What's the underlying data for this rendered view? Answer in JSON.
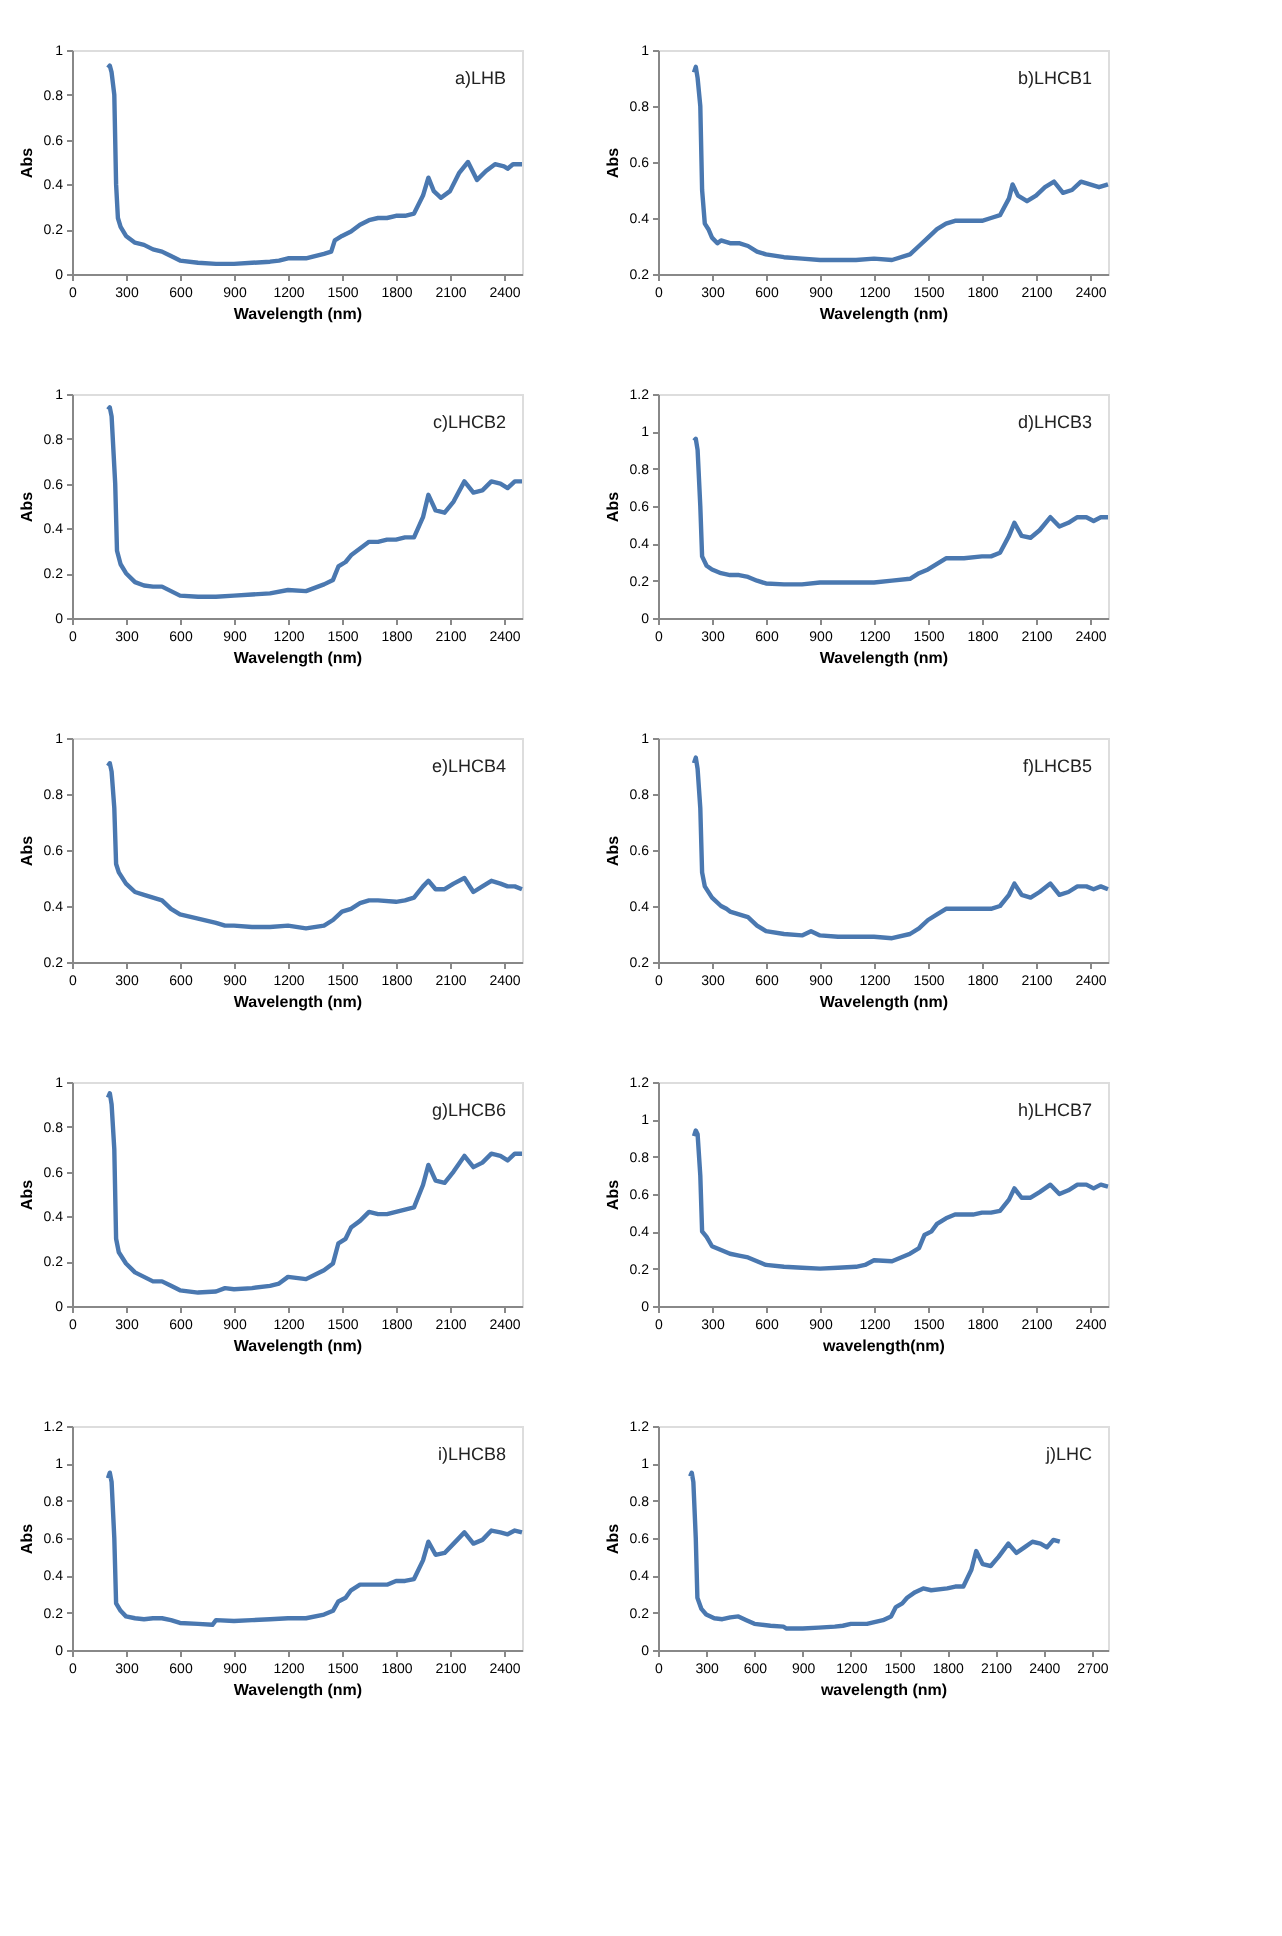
{
  "chart_data": [
    {
      "type": "line",
      "title": "a)LHB",
      "xlabel": "Wavelength (nm)",
      "ylabel": "Abs",
      "xlim": [
        0,
        2500
      ],
      "xticks": [
        0,
        300,
        600,
        900,
        1200,
        1500,
        1800,
        2100,
        2400
      ],
      "ylim": [
        0,
        1
      ],
      "yticks": [
        0,
        0.2,
        0.4,
        0.6,
        0.8,
        1
      ],
      "grid": false,
      "x": [
        200,
        210,
        220,
        235,
        245,
        255,
        270,
        300,
        350,
        400,
        450,
        500,
        550,
        600,
        700,
        800,
        900,
        1000,
        1100,
        1150,
        1200,
        1300,
        1400,
        1440,
        1460,
        1500,
        1550,
        1600,
        1650,
        1700,
        1750,
        1800,
        1850,
        1900,
        1950,
        1980,
        2010,
        2050,
        2100,
        2150,
        2200,
        2250,
        2300,
        2350,
        2400,
        2420,
        2450,
        2500
      ],
      "series": [
        {
          "color": "#4a78b0",
          "values": [
            0.92,
            0.93,
            0.9,
            0.8,
            0.4,
            0.25,
            0.21,
            0.17,
            0.14,
            0.13,
            0.11,
            0.1,
            0.08,
            0.06,
            0.05,
            0.045,
            0.045,
            0.05,
            0.055,
            0.06,
            0.07,
            0.07,
            0.09,
            0.1,
            0.15,
            0.17,
            0.19,
            0.22,
            0.24,
            0.25,
            0.25,
            0.26,
            0.26,
            0.27,
            0.35,
            0.43,
            0.37,
            0.34,
            0.37,
            0.45,
            0.5,
            0.42,
            0.46,
            0.49,
            0.48,
            0.47,
            0.49,
            0.49
          ]
        }
      ]
    },
    {
      "type": "line",
      "title": "b)LHCB1",
      "xlabel": "Wavelength (nm)",
      "ylabel": "Abs",
      "xlim": [
        0,
        2500
      ],
      "xticks": [
        0,
        300,
        600,
        900,
        1200,
        1500,
        1800,
        2100,
        2400
      ],
      "ylim": [
        0.2,
        1
      ],
      "yticks": [
        0.2,
        0.4,
        0.6,
        0.8,
        1
      ],
      "grid": false,
      "x": [
        200,
        210,
        220,
        235,
        245,
        260,
        280,
        300,
        330,
        350,
        400,
        450,
        500,
        550,
        600,
        700,
        800,
        900,
        1000,
        1100,
        1200,
        1300,
        1400,
        1450,
        1500,
        1550,
        1600,
        1650,
        1700,
        1800,
        1850,
        1900,
        1950,
        1970,
        2000,
        2050,
        2100,
        2150,
        2200,
        2250,
        2300,
        2350,
        2400,
        2450,
        2500
      ],
      "series": [
        {
          "color": "#4a78b0",
          "values": [
            0.92,
            0.94,
            0.9,
            0.8,
            0.5,
            0.38,
            0.36,
            0.33,
            0.31,
            0.32,
            0.31,
            0.31,
            0.3,
            0.28,
            0.27,
            0.26,
            0.255,
            0.25,
            0.25,
            0.25,
            0.255,
            0.25,
            0.27,
            0.3,
            0.33,
            0.36,
            0.38,
            0.39,
            0.39,
            0.39,
            0.4,
            0.41,
            0.47,
            0.52,
            0.48,
            0.46,
            0.48,
            0.51,
            0.53,
            0.49,
            0.5,
            0.53,
            0.52,
            0.51,
            0.52
          ]
        }
      ]
    },
    {
      "type": "line",
      "title": "c)LHCB2",
      "xlabel": "Wavelength (nm)",
      "ylabel": "Abs",
      "xlim": [
        0,
        2500
      ],
      "xticks": [
        0,
        300,
        600,
        900,
        1200,
        1500,
        1800,
        2100,
        2400
      ],
      "ylim": [
        0,
        1
      ],
      "yticks": [
        0,
        0.2,
        0.4,
        0.6,
        0.8,
        1
      ],
      "grid": false,
      "x": [
        200,
        210,
        220,
        240,
        250,
        270,
        300,
        350,
        400,
        450,
        500,
        550,
        600,
        700,
        800,
        900,
        1000,
        1100,
        1200,
        1300,
        1400,
        1450,
        1480,
        1520,
        1550,
        1600,
        1650,
        1700,
        1750,
        1800,
        1850,
        1900,
        1950,
        1980,
        2020,
        2070,
        2120,
        2180,
        2230,
        2280,
        2330,
        2380,
        2420,
        2460,
        2500
      ],
      "series": [
        {
          "color": "#4a78b0",
          "values": [
            0.93,
            0.94,
            0.9,
            0.6,
            0.3,
            0.24,
            0.2,
            0.16,
            0.145,
            0.14,
            0.14,
            0.12,
            0.1,
            0.095,
            0.095,
            0.1,
            0.105,
            0.11,
            0.125,
            0.12,
            0.15,
            0.17,
            0.23,
            0.25,
            0.28,
            0.31,
            0.34,
            0.34,
            0.35,
            0.35,
            0.36,
            0.36,
            0.45,
            0.55,
            0.48,
            0.47,
            0.52,
            0.61,
            0.56,
            0.57,
            0.61,
            0.6,
            0.58,
            0.61,
            0.61
          ]
        }
      ]
    },
    {
      "type": "line",
      "title": "d)LHCB3",
      "xlabel": "Wavelength (nm)",
      "ylabel": "Abs",
      "xlim": [
        0,
        2500
      ],
      "xticks": [
        0,
        300,
        600,
        900,
        1200,
        1500,
        1800,
        2100,
        2400
      ],
      "ylim": [
        0,
        1.2
      ],
      "yticks": [
        0,
        0.2,
        0.4,
        0.6,
        0.8,
        1,
        1.2
      ],
      "grid": false,
      "x": [
        200,
        210,
        220,
        235,
        245,
        270,
        300,
        350,
        400,
        450,
        500,
        550,
        600,
        700,
        800,
        900,
        1000,
        1100,
        1200,
        1300,
        1400,
        1450,
        1500,
        1550,
        1600,
        1650,
        1700,
        1800,
        1850,
        1900,
        1950,
        1980,
        2020,
        2070,
        2120,
        2180,
        2230,
        2280,
        2330,
        2380,
        2420,
        2460,
        2500
      ],
      "series": [
        {
          "color": "#4a78b0",
          "values": [
            0.95,
            0.96,
            0.9,
            0.6,
            0.33,
            0.28,
            0.26,
            0.24,
            0.23,
            0.23,
            0.22,
            0.2,
            0.185,
            0.18,
            0.18,
            0.19,
            0.19,
            0.19,
            0.19,
            0.2,
            0.21,
            0.24,
            0.26,
            0.29,
            0.32,
            0.32,
            0.32,
            0.33,
            0.33,
            0.35,
            0.44,
            0.51,
            0.44,
            0.43,
            0.47,
            0.54,
            0.49,
            0.51,
            0.54,
            0.54,
            0.52,
            0.54,
            0.54
          ]
        }
      ]
    },
    {
      "type": "line",
      "title": "e)LHCB4",
      "xlabel": "Wavelength (nm)",
      "ylabel": "Abs",
      "xlim": [
        0,
        2500
      ],
      "xticks": [
        0,
        300,
        600,
        900,
        1200,
        1500,
        1800,
        2100,
        2400
      ],
      "ylim": [
        0.2,
        1
      ],
      "yticks": [
        0.2,
        0.4,
        0.6,
        0.8,
        1
      ],
      "grid": false,
      "x": [
        200,
        210,
        220,
        235,
        245,
        260,
        300,
        350,
        400,
        450,
        500,
        550,
        600,
        700,
        800,
        850,
        900,
        1000,
        1100,
        1200,
        1300,
        1400,
        1450,
        1500,
        1550,
        1600,
        1650,
        1700,
        1800,
        1850,
        1900,
        1950,
        1980,
        2020,
        2070,
        2120,
        2180,
        2230,
        2280,
        2330,
        2380,
        2420,
        2460,
        2500
      ],
      "series": [
        {
          "color": "#4a78b0",
          "values": [
            0.9,
            0.91,
            0.88,
            0.75,
            0.55,
            0.52,
            0.48,
            0.45,
            0.44,
            0.43,
            0.42,
            0.39,
            0.37,
            0.355,
            0.34,
            0.33,
            0.33,
            0.325,
            0.325,
            0.33,
            0.32,
            0.33,
            0.35,
            0.38,
            0.39,
            0.41,
            0.42,
            0.42,
            0.415,
            0.42,
            0.43,
            0.47,
            0.49,
            0.46,
            0.46,
            0.48,
            0.5,
            0.45,
            0.47,
            0.49,
            0.48,
            0.47,
            0.47,
            0.46
          ]
        }
      ]
    },
    {
      "type": "line",
      "title": "f)LHCB5",
      "xlabel": "Wavelength (nm)",
      "ylabel": "Abs",
      "xlim": [
        0,
        2500
      ],
      "xticks": [
        0,
        300,
        600,
        900,
        1200,
        1500,
        1800,
        2100,
        2400
      ],
      "ylim": [
        0.2,
        1
      ],
      "yticks": [
        0.2,
        0.4,
        0.6,
        0.8,
        1
      ],
      "grid": false,
      "x": [
        200,
        210,
        220,
        235,
        245,
        260,
        300,
        350,
        380,
        400,
        450,
        500,
        550,
        600,
        700,
        800,
        850,
        900,
        1000,
        1100,
        1200,
        1300,
        1400,
        1450,
        1500,
        1550,
        1600,
        1650,
        1700,
        1800,
        1850,
        1900,
        1950,
        1980,
        2020,
        2070,
        2120,
        2180,
        2230,
        2280,
        2330,
        2380,
        2420,
        2460,
        2500
      ],
      "series": [
        {
          "color": "#4a78b0",
          "values": [
            0.91,
            0.93,
            0.89,
            0.75,
            0.52,
            0.47,
            0.43,
            0.4,
            0.39,
            0.38,
            0.37,
            0.36,
            0.33,
            0.31,
            0.3,
            0.295,
            0.31,
            0.295,
            0.29,
            0.29,
            0.29,
            0.285,
            0.3,
            0.32,
            0.35,
            0.37,
            0.39,
            0.39,
            0.39,
            0.39,
            0.39,
            0.4,
            0.44,
            0.48,
            0.44,
            0.43,
            0.45,
            0.48,
            0.44,
            0.45,
            0.47,
            0.47,
            0.46,
            0.47,
            0.46
          ]
        }
      ]
    },
    {
      "type": "line",
      "title": "g)LHCB6",
      "xlabel": "Wavelength (nm)",
      "ylabel": "Abs",
      "xlim": [
        0,
        2500
      ],
      "xticks": [
        0,
        300,
        600,
        900,
        1200,
        1500,
        1800,
        2100,
        2400
      ],
      "ylim": [
        0,
        1
      ],
      "yticks": [
        0,
        0.2,
        0.4,
        0.6,
        0.8,
        1
      ],
      "grid": false,
      "x": [
        200,
        210,
        220,
        235,
        245,
        260,
        300,
        350,
        400,
        450,
        500,
        550,
        600,
        700,
        800,
        850,
        900,
        1000,
        1100,
        1150,
        1200,
        1300,
        1400,
        1450,
        1480,
        1520,
        1550,
        1600,
        1650,
        1700,
        1750,
        1800,
        1850,
        1900,
        1950,
        1980,
        2020,
        2070,
        2120,
        2180,
        2230,
        2280,
        2330,
        2380,
        2420,
        2460,
        2500
      ],
      "series": [
        {
          "color": "#4a78b0",
          "values": [
            0.93,
            0.95,
            0.9,
            0.7,
            0.3,
            0.24,
            0.19,
            0.15,
            0.13,
            0.11,
            0.11,
            0.09,
            0.07,
            0.06,
            0.065,
            0.08,
            0.075,
            0.08,
            0.09,
            0.1,
            0.13,
            0.12,
            0.16,
            0.19,
            0.28,
            0.3,
            0.35,
            0.38,
            0.42,
            0.41,
            0.41,
            0.42,
            0.43,
            0.44,
            0.54,
            0.63,
            0.56,
            0.55,
            0.6,
            0.67,
            0.62,
            0.64,
            0.68,
            0.67,
            0.65,
            0.68,
            0.68
          ]
        }
      ]
    },
    {
      "type": "line",
      "title": "h)LHCB7",
      "xlabel": "wavelength(nm)",
      "ylabel": "Abs",
      "xlim": [
        0,
        2500
      ],
      "xticks": [
        0,
        300,
        600,
        900,
        1200,
        1500,
        1800,
        2100,
        2400
      ],
      "ylim": [
        0,
        1.2
      ],
      "yticks": [
        0,
        0.2,
        0.4,
        0.6,
        0.8,
        1,
        1.2
      ],
      "grid": false,
      "x": [
        200,
        210,
        220,
        235,
        245,
        270,
        300,
        350,
        400,
        450,
        500,
        550,
        600,
        700,
        800,
        900,
        1000,
        1100,
        1150,
        1200,
        1300,
        1400,
        1450,
        1480,
        1520,
        1550,
        1600,
        1650,
        1700,
        1750,
        1800,
        1850,
        1900,
        1950,
        1980,
        2020,
        2070,
        2120,
        2180,
        2230,
        2280,
        2330,
        2380,
        2420,
        2460,
        2500
      ],
      "series": [
        {
          "color": "#4a78b0",
          "values": [
            0.91,
            0.94,
            0.92,
            0.7,
            0.4,
            0.37,
            0.32,
            0.3,
            0.28,
            0.27,
            0.26,
            0.24,
            0.22,
            0.21,
            0.205,
            0.2,
            0.205,
            0.21,
            0.22,
            0.245,
            0.24,
            0.28,
            0.31,
            0.38,
            0.4,
            0.44,
            0.47,
            0.49,
            0.49,
            0.49,
            0.5,
            0.5,
            0.51,
            0.57,
            0.63,
            0.58,
            0.58,
            0.61,
            0.65,
            0.6,
            0.62,
            0.65,
            0.65,
            0.63,
            0.65,
            0.64
          ]
        }
      ]
    },
    {
      "type": "line",
      "title": "i)LHCB8",
      "xlabel": "Wavelength (nm)",
      "ylabel": "Abs",
      "xlim": [
        0,
        2500
      ],
      "xticks": [
        0,
        300,
        600,
        900,
        1200,
        1500,
        1800,
        2100,
        2400
      ],
      "ylim": [
        0,
        1.2
      ],
      "yticks": [
        0,
        0.2,
        0.4,
        0.6,
        0.8,
        1,
        1.2
      ],
      "grid": false,
      "x": [
        200,
        210,
        220,
        235,
        245,
        270,
        300,
        350,
        400,
        450,
        500,
        550,
        600,
        700,
        780,
        800,
        900,
        1000,
        1100,
        1200,
        1300,
        1400,
        1450,
        1480,
        1520,
        1550,
        1600,
        1650,
        1700,
        1750,
        1800,
        1850,
        1900,
        1950,
        1980,
        2020,
        2070,
        2120,
        2180,
        2230,
        2280,
        2330,
        2380,
        2420,
        2460,
        2500
      ],
      "series": [
        {
          "color": "#4a78b0",
          "values": [
            0.92,
            0.95,
            0.9,
            0.6,
            0.25,
            0.21,
            0.18,
            0.17,
            0.165,
            0.17,
            0.17,
            0.16,
            0.145,
            0.14,
            0.135,
            0.16,
            0.155,
            0.16,
            0.165,
            0.17,
            0.17,
            0.19,
            0.21,
            0.26,
            0.28,
            0.32,
            0.35,
            0.35,
            0.35,
            0.35,
            0.37,
            0.37,
            0.38,
            0.48,
            0.58,
            0.51,
            0.52,
            0.57,
            0.63,
            0.57,
            0.59,
            0.64,
            0.63,
            0.62,
            0.64,
            0.63
          ]
        }
      ]
    },
    {
      "type": "line",
      "title": "j)LHC",
      "xlabel": "wavelength (nm)",
      "ylabel": "Abs",
      "xlim": [
        0,
        2800
      ],
      "xticks": [
        0,
        300,
        600,
        900,
        1200,
        1500,
        1800,
        2100,
        2400,
        2700
      ],
      "ylim": [
        0,
        1.2
      ],
      "yticks": [
        0,
        0.2,
        0.4,
        0.6,
        0.8,
        1,
        1.2
      ],
      "grid": false,
      "x": [
        200,
        210,
        220,
        235,
        245,
        270,
        300,
        350,
        400,
        450,
        500,
        550,
        600,
        700,
        780,
        800,
        900,
        1000,
        1100,
        1150,
        1200,
        1300,
        1400,
        1450,
        1480,
        1520,
        1550,
        1600,
        1650,
        1700,
        1800,
        1850,
        1900,
        1950,
        1980,
        2020,
        2070,
        2120,
        2180,
        2230,
        2280,
        2330,
        2380,
        2420,
        2460,
        2500
      ],
      "series": [
        {
          "color": "#4a78b0",
          "values": [
            0.93,
            0.95,
            0.9,
            0.6,
            0.28,
            0.22,
            0.19,
            0.17,
            0.165,
            0.175,
            0.18,
            0.16,
            0.14,
            0.13,
            0.125,
            0.115,
            0.115,
            0.12,
            0.125,
            0.13,
            0.14,
            0.14,
            0.16,
            0.18,
            0.23,
            0.25,
            0.28,
            0.31,
            0.33,
            0.32,
            0.33,
            0.34,
            0.34,
            0.43,
            0.53,
            0.46,
            0.45,
            0.5,
            0.57,
            0.52,
            0.55,
            0.58,
            0.57,
            0.55,
            0.59,
            0.58
          ]
        }
      ]
    }
  ]
}
